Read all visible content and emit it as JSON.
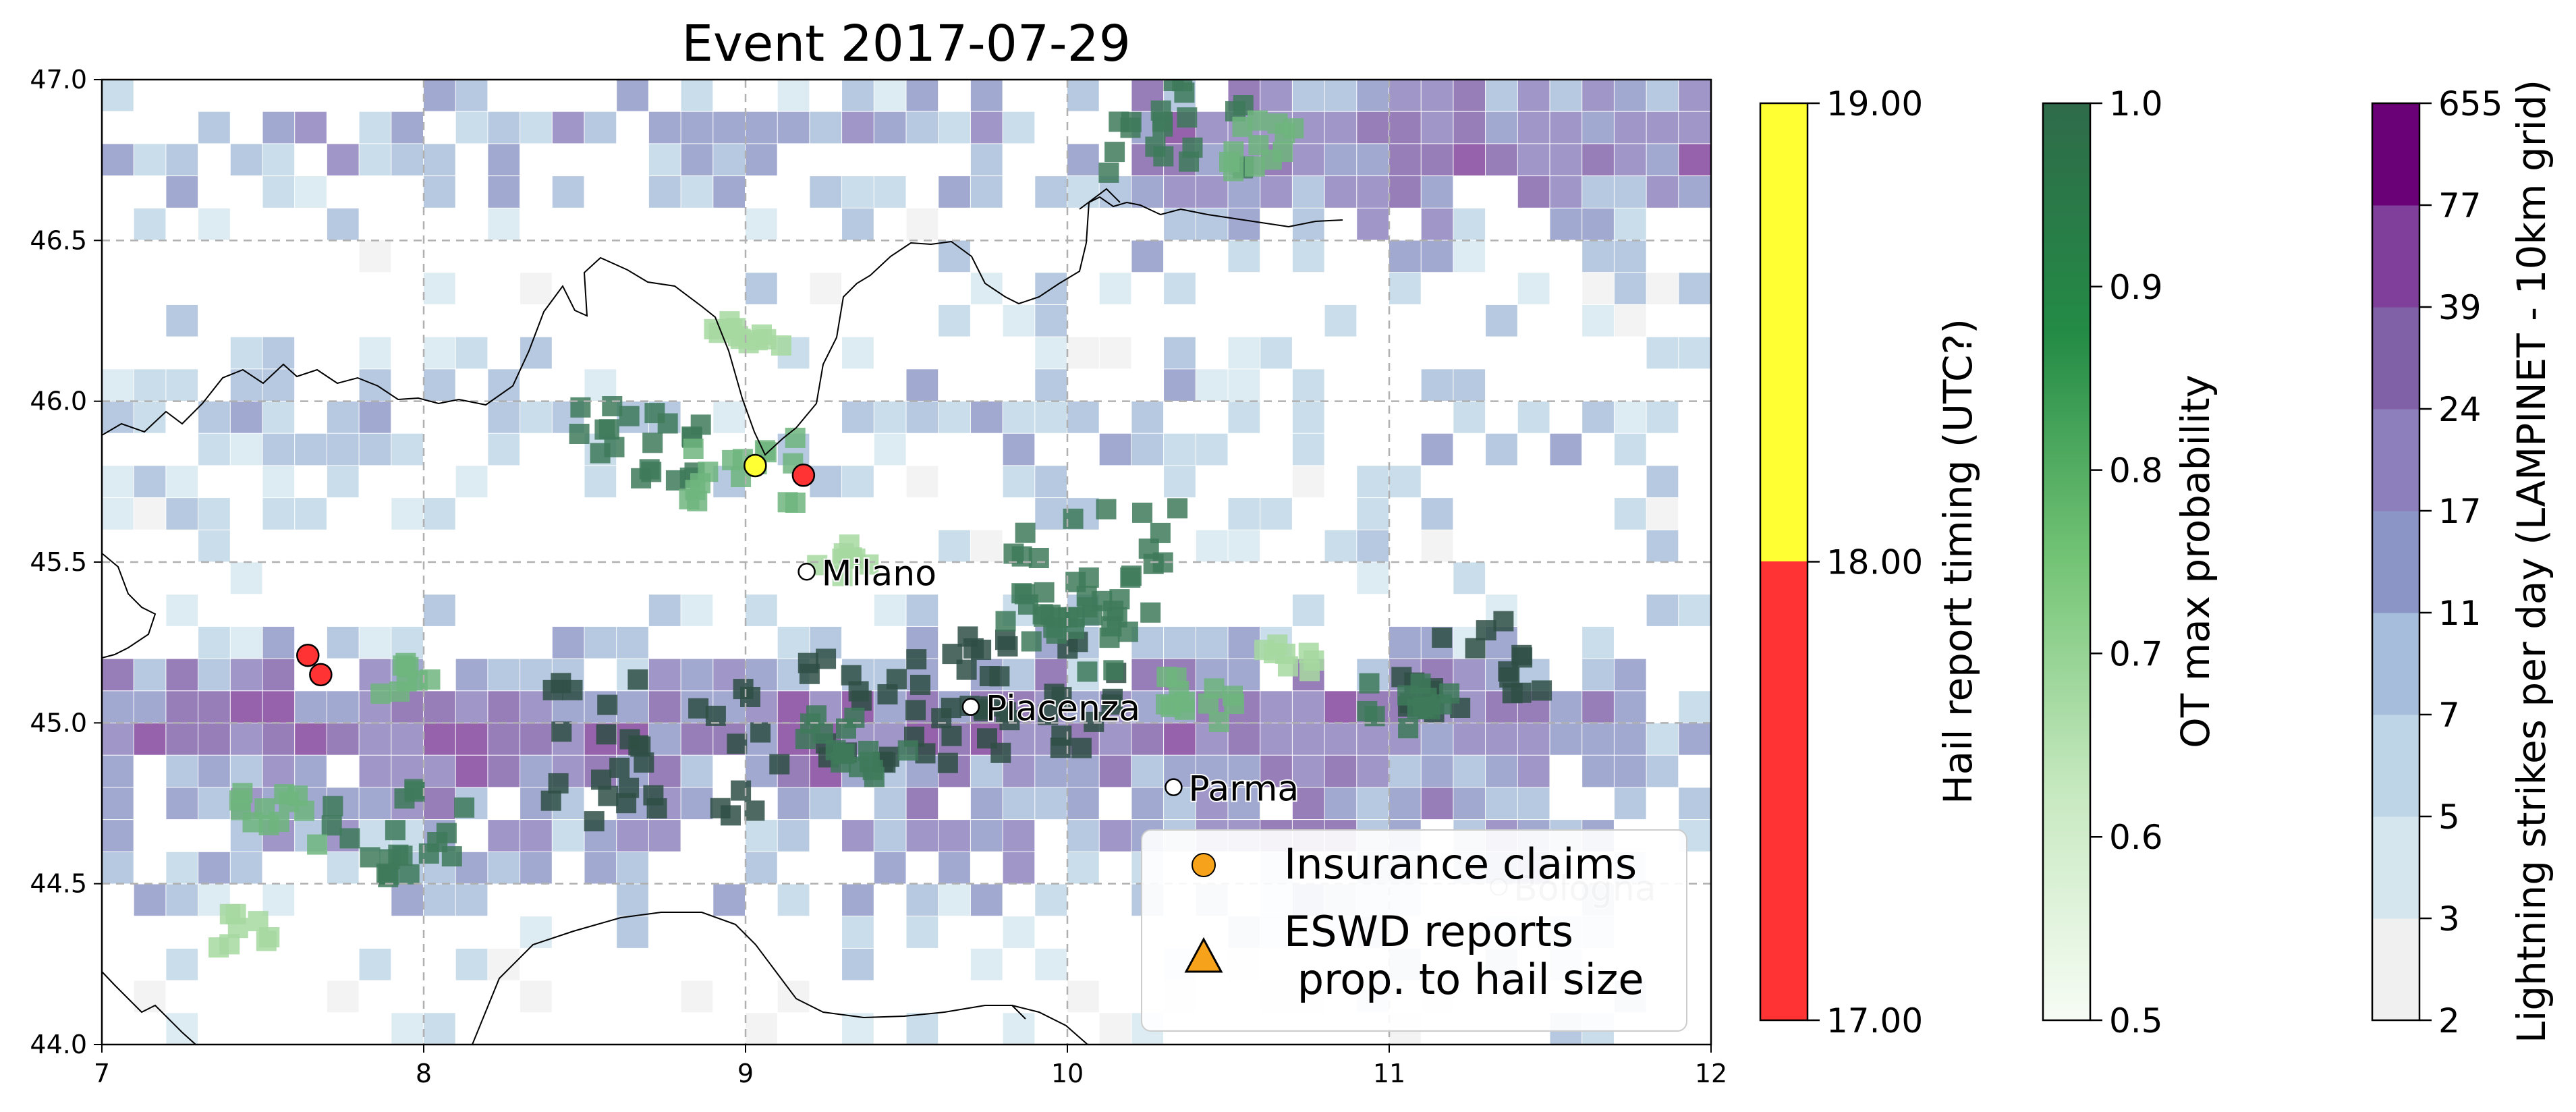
{
  "map": {
    "title": "Event 2017-07-29",
    "extent": {
      "lon": [
        7,
        12
      ],
      "lat": [
        44.0,
        47.0
      ]
    },
    "x_ticks": [
      {
        "value": 7,
        "label": "7"
      },
      {
        "value": 8,
        "label": "8"
      },
      {
        "value": 9,
        "label": "9"
      },
      {
        "value": 10,
        "label": "10"
      },
      {
        "value": 11,
        "label": "11"
      },
      {
        "value": 12,
        "label": "12"
      }
    ],
    "y_ticks": [
      {
        "value": 44.0,
        "label": "44.0"
      },
      {
        "value": 44.5,
        "label": "44.5"
      },
      {
        "value": 45.0,
        "label": "45.0"
      },
      {
        "value": 45.5,
        "label": "45.5"
      },
      {
        "value": 46.0,
        "label": "46.0"
      },
      {
        "value": 46.5,
        "label": "46.5"
      },
      {
        "value": 47.0,
        "label": "47.0"
      }
    ],
    "gridlines": true,
    "cities": [
      {
        "name": "Milano",
        "lon": 9.19,
        "lat": 45.47,
        "faded": false
      },
      {
        "name": "Piacenza",
        "lon": 9.7,
        "lat": 45.05,
        "faded": false
      },
      {
        "name": "Parma",
        "lon": 10.33,
        "lat": 44.8,
        "faded": false
      },
      {
        "name": "Bologna",
        "lon": 11.34,
        "lat": 44.49,
        "faded": true
      }
    ],
    "hail_reports": [
      {
        "lon": 9.03,
        "lat": 45.8,
        "time_utc": 18.5
      },
      {
        "lon": 9.18,
        "lat": 45.77,
        "time_utc": 17.5
      },
      {
        "lon": 7.64,
        "lat": 45.21,
        "time_utc": 17.5
      },
      {
        "lon": 7.68,
        "lat": 45.15,
        "time_utc": 17.5
      }
    ],
    "legend": {
      "position": "lower-right",
      "items": [
        {
          "symbol": "circle",
          "label_lines": [
            "Insurance claims"
          ]
        },
        {
          "symbol": "triangle",
          "label_lines": [
            "ESWD reports",
            " prop. to hail size"
          ]
        }
      ]
    },
    "colors": {
      "marker_fill": "#f7a21b",
      "hail_late": "#ffff33",
      "hail_early": "#ff3333",
      "gridline": "#b0b0b0"
    }
  },
  "colorbars": [
    {
      "label": "Hail report timing (UTC?)",
      "type": "discrete",
      "ticks": [
        "17.00",
        "18.00",
        "19.00"
      ],
      "segments": [
        {
          "from": 17,
          "to": 18,
          "color": "#ff3333"
        },
        {
          "from": 18,
          "to": 19,
          "color": "#ffff33"
        }
      ]
    },
    {
      "label": "OT max probability",
      "type": "continuous",
      "ticks": [
        "0.5",
        "0.6",
        "0.7",
        "0.8",
        "0.9",
        "1.0"
      ],
      "range": [
        0.5,
        1.0
      ],
      "color_stops": [
        "#f7fcf5",
        "#c7e9c0",
        "#74c476",
        "#238b45",
        "#2f6b4a"
      ]
    },
    {
      "label": "Lightning strikes per day (LAMPINET - 10km grid)",
      "type": "discrete",
      "ticks": [
        "2",
        "3",
        "5",
        "7",
        "11",
        "17",
        "24",
        "39",
        "77",
        "655"
      ],
      "segment_colors": [
        "#f0f0f0",
        "#d6e6ef",
        "#bdd5e6",
        "#a6bddb",
        "#8c96c6",
        "#8c7fbc",
        "#8061a8",
        "#7f3f9a",
        "#6a0177"
      ]
    }
  ]
}
